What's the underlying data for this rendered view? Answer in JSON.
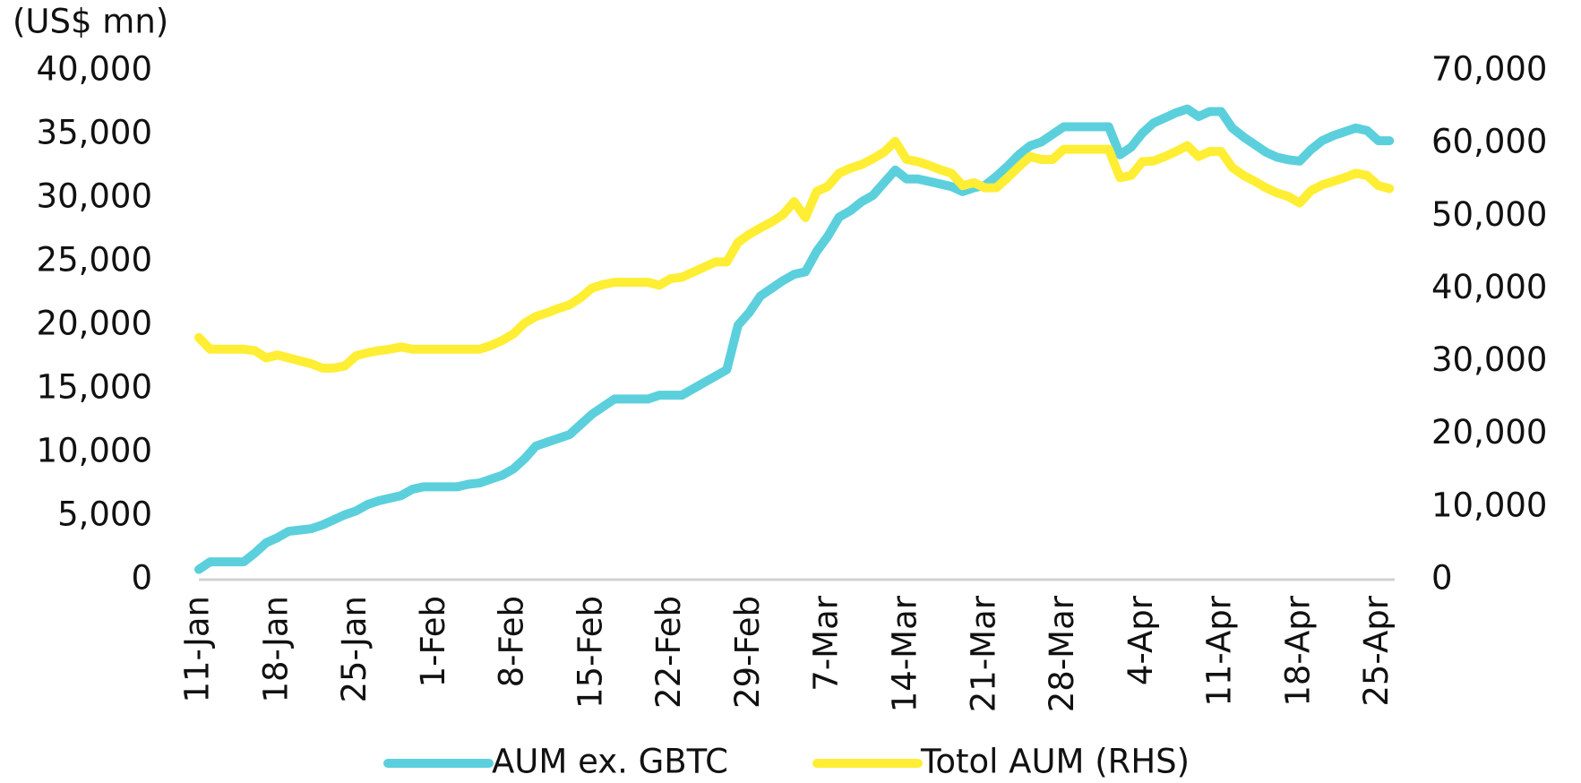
{
  "chart_data": {
    "type": "line",
    "y_label": "(US$ mn)",
    "categories": [
      "11-Jan",
      null,
      null,
      null,
      null,
      null,
      null,
      "18-Jan",
      null,
      null,
      null,
      null,
      null,
      null,
      "25-Jan",
      null,
      null,
      null,
      null,
      null,
      null,
      "1-Feb",
      null,
      null,
      null,
      null,
      null,
      null,
      "8-Feb",
      null,
      null,
      null,
      null,
      null,
      null,
      "15-Feb",
      null,
      null,
      null,
      null,
      null,
      null,
      "22-Feb",
      null,
      null,
      null,
      null,
      null,
      null,
      "29-Feb",
      null,
      null,
      null,
      null,
      null,
      null,
      "7-Mar",
      null,
      null,
      null,
      null,
      null,
      null,
      "14-Mar",
      null,
      null,
      null,
      null,
      null,
      null,
      "21-Mar",
      null,
      null,
      null,
      null,
      null,
      null,
      "28-Mar",
      null,
      null,
      null,
      null,
      null,
      null,
      "4-Apr",
      null,
      null,
      null,
      null,
      null,
      null,
      "11-Apr",
      null,
      null,
      null,
      null,
      null,
      null,
      "18-Apr",
      null,
      null,
      null,
      null,
      null,
      null,
      "25-Apr",
      null
    ],
    "series": [
      {
        "name": "AUM ex. GBTC",
        "color": "#5BD0DC",
        "values": [
          800,
          1400,
          1400,
          1400,
          1400,
          2100,
          2900,
          3300,
          3800,
          3900,
          4000,
          4300,
          4700,
          5100,
          5400,
          5900,
          6200,
          6400,
          6600,
          7100,
          7300,
          7300,
          7300,
          7300,
          7500,
          7600,
          7900,
          8200,
          8700,
          9500,
          10500,
          10800,
          11100,
          11400,
          12200,
          13000,
          13600,
          14200,
          14200,
          14200,
          14200,
          14500,
          14500,
          14500,
          15000,
          15500,
          16000,
          16500,
          20000,
          21000,
          22300,
          22900,
          23500,
          24000,
          24200,
          25800,
          27000,
          28500,
          29000,
          29700,
          30200,
          31200,
          32200,
          31500,
          31500,
          31300,
          31100,
          30900,
          30500,
          30800,
          31000,
          31700,
          32500,
          33400,
          34100,
          34400,
          35000,
          35600,
          35600,
          35600,
          35600,
          35600,
          33400,
          34000,
          35100,
          35900,
          36300,
          36700,
          37000,
          36400,
          36800,
          36800,
          35500,
          34800,
          34200,
          33600,
          33200,
          33000,
          32900,
          33800,
          34500,
          34900,
          35200,
          35500,
          35300,
          34500,
          34500
        ]
      },
      {
        "name": "Totol AUM (RHS)",
        "color": "#FFEE33",
        "axis": "y2",
        "values": [
          33300,
          31700,
          31700,
          31700,
          31700,
          31500,
          30500,
          30900,
          30500,
          30100,
          29700,
          29100,
          29100,
          29400,
          30800,
          31200,
          31500,
          31700,
          32000,
          31700,
          31700,
          31700,
          31700,
          31700,
          31700,
          31700,
          32200,
          32900,
          33800,
          35300,
          36200,
          36700,
          37300,
          37800,
          38800,
          40100,
          40600,
          40900,
          40900,
          40900,
          40900,
          40500,
          41400,
          41600,
          42300,
          43000,
          43700,
          43700,
          46400,
          47500,
          48400,
          49200,
          50200,
          52000,
          49800,
          53400,
          54100,
          55900,
          56600,
          57100,
          57900,
          58800,
          60300,
          57800,
          57500,
          57000,
          56400,
          55900,
          54200,
          54600,
          53900,
          53900,
          55300,
          56800,
          58200,
          57800,
          57800,
          59200,
          59200,
          59200,
          59200,
          59200,
          55300,
          55600,
          57500,
          57600,
          58200,
          58900,
          59700,
          58200,
          58900,
          58900,
          56700,
          55600,
          54800,
          53900,
          53200,
          52700,
          51800,
          53500,
          54300,
          54800,
          55300,
          55900,
          55600,
          54200,
          53800
        ]
      }
    ],
    "ylim": [
      0,
      40000
    ],
    "yticks": [
      0,
      {
        "value": 5000,
        "label": "5,000"
      },
      {
        "value": 10000,
        "label": "10,000"
      },
      {
        "value": 15000,
        "label": "15,000"
      },
      {
        "value": 20000,
        "label": "20,000"
      },
      {
        "value": 25000,
        "label": "25,000"
      },
      {
        "value": 30000,
        "label": "30,000"
      },
      {
        "value": 35000,
        "label": "35,000"
      },
      {
        "value": 40000,
        "label": "40,000"
      }
    ],
    "y2lim": [
      0,
      70000
    ],
    "y2ticks": [
      0,
      {
        "value": 10000,
        "label": "10,000"
      },
      {
        "value": 20000,
        "label": "20,000"
      },
      {
        "value": 30000,
        "label": "30,000"
      },
      {
        "value": 40000,
        "label": "40,000"
      },
      {
        "value": 50000,
        "label": "50,000"
      },
      {
        "value": 60000,
        "label": "60,000"
      },
      {
        "value": 70000,
        "label": "70,000"
      }
    ],
    "grid": false,
    "legend": "bottom"
  }
}
